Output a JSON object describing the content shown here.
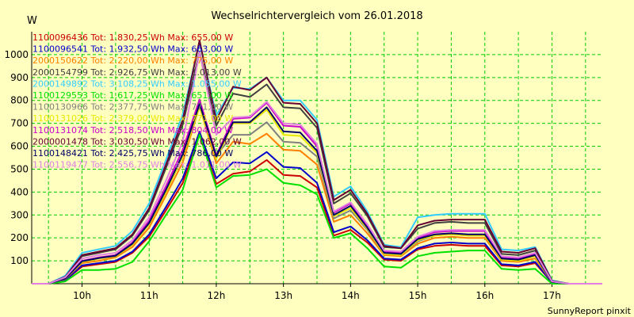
{
  "chart_data": {
    "type": "line",
    "title": "Wechselrichtervergleich vom 26.01.2018",
    "ylabel": "W",
    "xlabel": "",
    "footer": "SunnyReport pinxit",
    "ylim": [
      0,
      1100
    ],
    "xlim": [
      "09:15",
      "17:45"
    ],
    "grid": true,
    "legend_position": "top-left-inside",
    "yticks": [
      100,
      200,
      300,
      400,
      500,
      600,
      700,
      800,
      900,
      1000
    ],
    "xticks": [
      "10h",
      "11h",
      "12h",
      "13h",
      "14h",
      "15h",
      "16h",
      "17h"
    ],
    "x": [
      "09:15",
      "09:30",
      "09:45",
      "10:00",
      "10:15",
      "10:30",
      "10:45",
      "11:00",
      "11:15",
      "11:30",
      "11:45",
      "12:00",
      "12:15",
      "12:30",
      "12:45",
      "13:00",
      "13:15",
      "13:30",
      "13:45",
      "14:00",
      "14:15",
      "14:30",
      "14:45",
      "15:00",
      "15:15",
      "15:30",
      "15:45",
      "16:00",
      "16:15",
      "16:30",
      "16:45",
      "17:00",
      "17:15",
      "17:30",
      "17:45"
    ],
    "series": [
      {
        "name": "1100096436",
        "legend": "1100096436 Tot: 1.830,25 Wh Max: 655,00 W",
        "color": "#cc0000",
        "values": [
          0,
          0,
          15,
          75,
          85,
          95,
          135,
          205,
          320,
          440,
          655,
          435,
          480,
          490,
          540,
          475,
          470,
          420,
          210,
          235,
          180,
          105,
          100,
          150,
          165,
          170,
          165,
          165,
          80,
          75,
          90,
          5,
          0,
          0,
          0
        ]
      },
      {
        "name": "1100096541",
        "legend": "1100096541 Tot: 1.932,50 Wh Max: 663,00 W",
        "color": "#0000cc",
        "values": [
          0,
          0,
          15,
          80,
          90,
          100,
          140,
          215,
          335,
          460,
          663,
          460,
          530,
          525,
          575,
          510,
          505,
          440,
          225,
          250,
          190,
          110,
          105,
          155,
          175,
          180,
          175,
          175,
          85,
          80,
          95,
          5,
          0,
          0,
          0
        ]
      },
      {
        "name": "2000150622",
        "legend": "2000150622 Tot: 2.220,00 Wh Max: 775,00 W",
        "color": "#ff8000",
        "values": [
          0,
          0,
          20,
          90,
          100,
          115,
          160,
          245,
          385,
          530,
          775,
          525,
          620,
          610,
          655,
          585,
          580,
          520,
          270,
          300,
          220,
          125,
          120,
          175,
          200,
          205,
          200,
          200,
          100,
          95,
          110,
          8,
          0,
          0,
          0
        ]
      },
      {
        "name": "2000154799",
        "legend": "2000154799 Tot: 2.926,75 Wh Max: 1.013,00 W",
        "color": "#404040",
        "values": [
          0,
          0,
          30,
          120,
          135,
          150,
          210,
          320,
          505,
          695,
          1013,
          690,
          830,
          815,
          870,
          770,
          765,
          680,
          350,
          395,
          295,
          160,
          155,
          240,
          265,
          270,
          265,
          265,
          130,
          125,
          145,
          10,
          0,
          0,
          0
        ]
      },
      {
        "name": "2000149892",
        "legend": "2000149892 Tot: 3.108,25 Wh Max: 1.055,00 W",
        "color": "#33ccff",
        "values": [
          0,
          0,
          35,
          135,
          150,
          165,
          230,
          350,
          540,
          740,
          1055,
          735,
          855,
          850,
          900,
          800,
          800,
          715,
          380,
          425,
          315,
          170,
          160,
          290,
          300,
          305,
          305,
          305,
          150,
          145,
          160,
          15,
          0,
          0,
          0
        ]
      },
      {
        "name": "1100129553",
        "legend": "1100129553 Tot: 1.617,25 Wh Max: 651,00 W",
        "color": "#00e000",
        "values": [
          0,
          0,
          10,
          60,
          60,
          65,
          95,
          185,
          300,
          410,
          651,
          420,
          470,
          475,
          500,
          440,
          430,
          390,
          200,
          220,
          155,
          75,
          70,
          120,
          135,
          140,
          145,
          145,
          65,
          60,
          65,
          0,
          0,
          0,
          0
        ]
      },
      {
        "name": "1100130966",
        "legend": "1100130966 Tot: 2.377,75 Wh Max: 771,00 W",
        "color": "#808080",
        "values": [
          0,
          0,
          22,
          95,
          110,
          120,
          170,
          260,
          400,
          555,
          771,
          560,
          650,
          650,
          705,
          620,
          615,
          555,
          285,
          320,
          235,
          130,
          125,
          185,
          210,
          215,
          210,
          210,
          105,
          100,
          120,
          8,
          0,
          0,
          0
        ]
      },
      {
        "name": "1100131026",
        "legend": "1100131026 Tot: 2.379,00 Wh Max: 771,00 W",
        "color": "#e8e800",
        "values": [
          0,
          0,
          22,
          95,
          110,
          120,
          170,
          260,
          400,
          555,
          771,
          545,
          700,
          700,
          760,
          650,
          645,
          570,
          295,
          330,
          240,
          130,
          125,
          190,
          210,
          215,
          210,
          210,
          105,
          100,
          120,
          8,
          0,
          0,
          0
        ]
      },
      {
        "name": "1100131074",
        "legend": "1100131074 Tot: 2.518,50 Wh Max: 804,00 W",
        "color": "#cc00cc",
        "values": [
          0,
          0,
          25,
          100,
          115,
          125,
          180,
          275,
          425,
          585,
          804,
          560,
          720,
          725,
          790,
          690,
          685,
          600,
          310,
          350,
          255,
          140,
          135,
          200,
          225,
          230,
          230,
          230,
          115,
          110,
          130,
          8,
          0,
          0,
          0
        ]
      },
      {
        "name": "2000001478",
        "legend": "2000001478 Tot: 3.030,50 Wh Max: 1.062,00 W",
        "color": "#660033",
        "values": [
          0,
          0,
          30,
          125,
          140,
          155,
          215,
          330,
          520,
          715,
          1062,
          715,
          860,
          845,
          900,
          790,
          785,
          700,
          365,
          410,
          305,
          165,
          155,
          255,
          275,
          280,
          280,
          280,
          140,
          135,
          155,
          12,
          0,
          0,
          0
        ]
      },
      {
        "name": "1100148421",
        "legend": "1100148421 Tot: 2.425,75 Wh Max: 786,00 W",
        "color": "#000066",
        "values": [
          0,
          0,
          22,
          98,
          112,
          122,
          175,
          265,
          410,
          565,
          786,
          555,
          705,
          705,
          770,
          665,
          660,
          580,
          300,
          340,
          245,
          135,
          130,
          195,
          215,
          220,
          215,
          215,
          110,
          105,
          125,
          8,
          0,
          0,
          0
        ]
      },
      {
        "name": "1100119477",
        "legend": "1100119477 Tot: 2.556,75 Wh Max: 1.011,00 W",
        "color": "#e080e0",
        "values": [
          0,
          0,
          28,
          110,
          125,
          135,
          190,
          290,
          450,
          620,
          1011,
          650,
          725,
          730,
          795,
          700,
          695,
          610,
          315,
          355,
          260,
          145,
          140,
          205,
          230,
          235,
          235,
          235,
          120,
          115,
          135,
          10,
          0,
          0,
          0
        ]
      }
    ]
  }
}
